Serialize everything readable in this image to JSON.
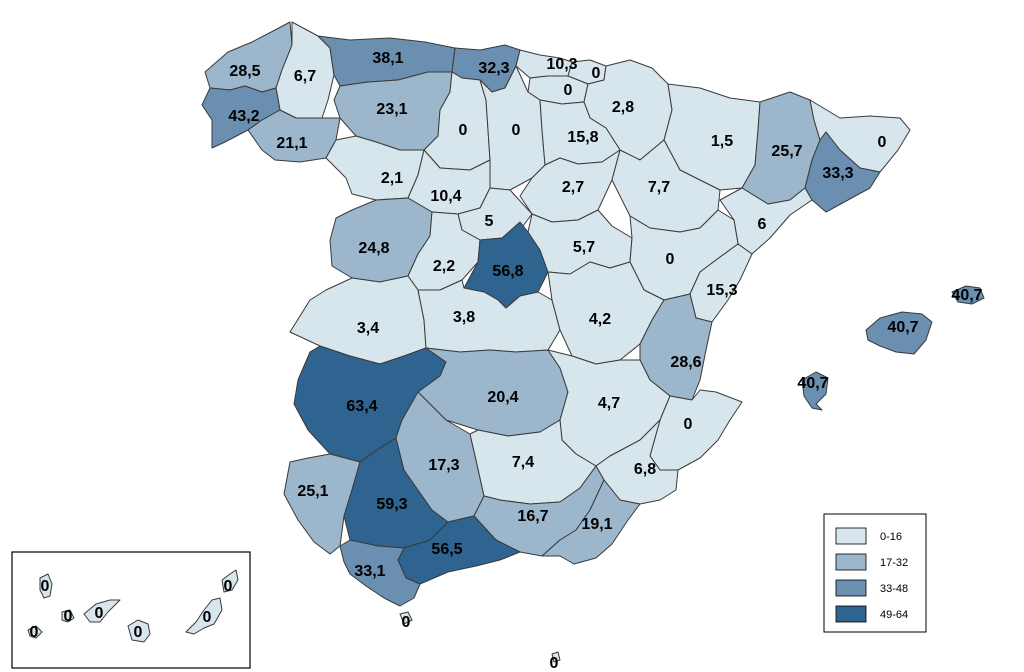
{
  "colors": {
    "c1": "#d7e6ec",
    "c2": "#9cb6cc",
    "c3": "#6a8fb0",
    "c4": "#2f6490"
  },
  "legend": [
    {
      "label": "0-16",
      "color": "c1"
    },
    {
      "label": "17-32",
      "color": "c2"
    },
    {
      "label": "33-48",
      "color": "c3"
    },
    {
      "label": "49-64",
      "color": "c4"
    }
  ],
  "regions": {
    "a_coruna": {
      "value": "28,5",
      "cls": "c2"
    },
    "lugo": {
      "value": "6,7",
      "cls": "c1"
    },
    "asturias": {
      "value": "38,1",
      "cls": "c3"
    },
    "cantabria": {
      "value": "32,3",
      "cls": "c3"
    },
    "vizcaya": {
      "value": "10,3",
      "cls": "c1"
    },
    "guipuzcoa": {
      "value": "0",
      "cls": "c1"
    },
    "alava": {
      "value": "0",
      "cls": "c1"
    },
    "navarra": {
      "value": "2,8",
      "cls": "c1"
    },
    "pontevedra": {
      "value": "43,2",
      "cls": "c3"
    },
    "ourense": {
      "value": "21,1",
      "cls": "c2"
    },
    "leon": {
      "value": "23,1",
      "cls": "c2"
    },
    "palencia": {
      "value": "0",
      "cls": "c1"
    },
    "burgos": {
      "value": "0",
      "cls": "c1"
    },
    "la_rioja": {
      "value": "15,8",
      "cls": "c1"
    },
    "huesca": {
      "value": "1,5",
      "cls": "c1"
    },
    "lleida": {
      "value": "25,7",
      "cls": "c2"
    },
    "girona": {
      "value": "0",
      "cls": "c1"
    },
    "barcelona": {
      "value": "33,3",
      "cls": "c3"
    },
    "zamora": {
      "value": "2,1",
      "cls": "c1"
    },
    "valladolid": {
      "value": "10,4",
      "cls": "c1"
    },
    "soria": {
      "value": "2,7",
      "cls": "c1"
    },
    "zaragoza": {
      "value": "7,7",
      "cls": "c1"
    },
    "tarragona": {
      "value": "6",
      "cls": "c1"
    },
    "segovia": {
      "value": "5",
      "cls": "c1"
    },
    "salamanca": {
      "value": "24,8",
      "cls": "c2"
    },
    "avila": {
      "value": "2,2",
      "cls": "c1"
    },
    "madrid": {
      "value": "56,8",
      "cls": "c4"
    },
    "guadalajara": {
      "value": "5,7",
      "cls": "c1"
    },
    "teruel": {
      "value": "0",
      "cls": "c1"
    },
    "castellon": {
      "value": "15,3",
      "cls": "c1"
    },
    "caceres": {
      "value": "3,4",
      "cls": "c1"
    },
    "toledo": {
      "value": "3,8",
      "cls": "c1"
    },
    "cuenca": {
      "value": "4,2",
      "cls": "c1"
    },
    "valencia": {
      "value": "28,6",
      "cls": "c2"
    },
    "badajoz": {
      "value": "63,4",
      "cls": "c4"
    },
    "ciudad_real": {
      "value": "20,4",
      "cls": "c2"
    },
    "albacete": {
      "value": "4,7",
      "cls": "c1"
    },
    "alicante": {
      "value": "0",
      "cls": "c1"
    },
    "huelva": {
      "value": "25,1",
      "cls": "c2"
    },
    "sevilla": {
      "value": "59,3",
      "cls": "c4"
    },
    "cordoba": {
      "value": "17,3",
      "cls": "c2"
    },
    "jaen": {
      "value": "7,4",
      "cls": "c1"
    },
    "murcia": {
      "value": "6,8",
      "cls": "c1"
    },
    "granada": {
      "value": "16,7",
      "cls": "c2"
    },
    "almeria": {
      "value": "19,1",
      "cls": "c2"
    },
    "malaga": {
      "value": "56,5",
      "cls": "c4"
    },
    "cadiz": {
      "value": "33,1",
      "cls": "c3"
    },
    "ceuta": {
      "value": "0",
      "cls": "c1"
    },
    "melilla": {
      "value": "0",
      "cls": "c1"
    },
    "mallorca": {
      "value": "40,7",
      "cls": "c3"
    },
    "menorca": {
      "value": "40,7",
      "cls": "c3"
    },
    "ibiza": {
      "value": "40,7",
      "cls": "c3"
    },
    "la_palma": {
      "value": "0",
      "cls": "c1"
    },
    "tenerife": {
      "value": "0",
      "cls": "c1"
    },
    "el_hierro": {
      "value": "0",
      "cls": "c1"
    },
    "la_gomera": {
      "value": "0",
      "cls": "c1"
    },
    "gran_canaria": {
      "value": "0",
      "cls": "c1"
    },
    "fuerteventura": {
      "value": "0",
      "cls": "c1"
    },
    "lanzarote": {
      "value": "0",
      "cls": "c1"
    }
  }
}
